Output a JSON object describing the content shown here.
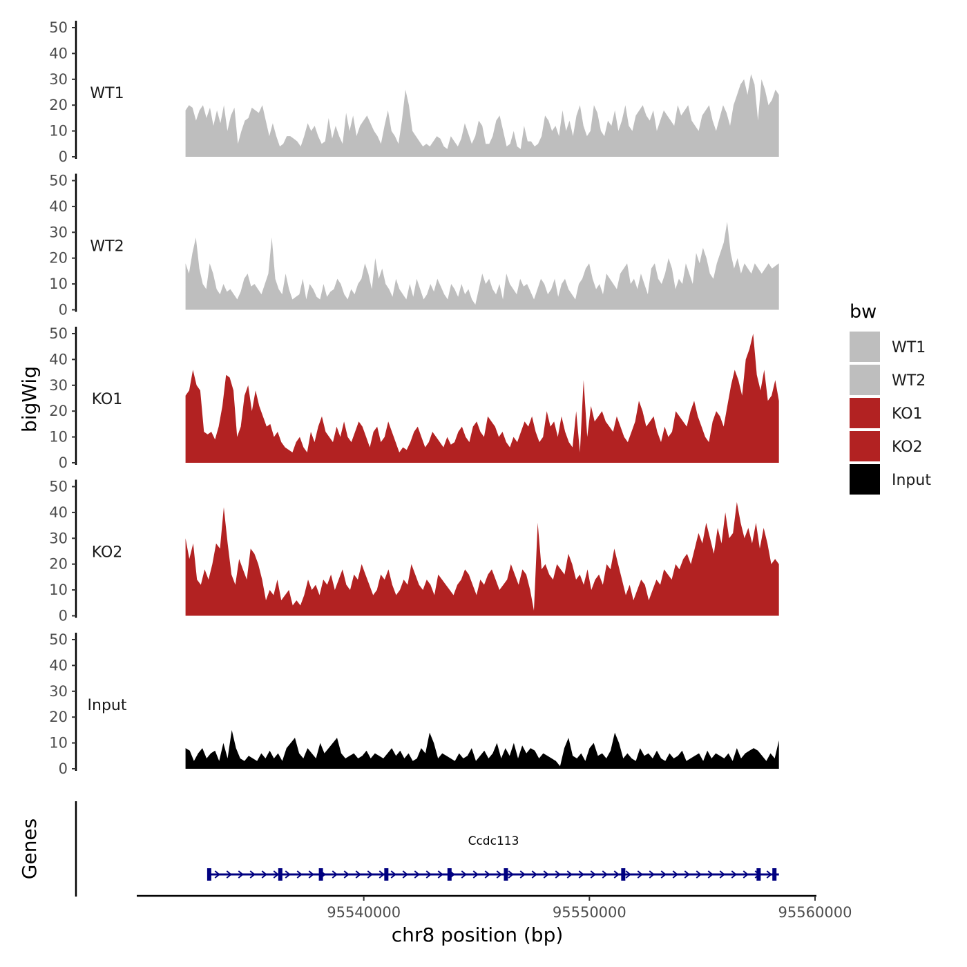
{
  "chart_data": {
    "type": "area",
    "title": "",
    "ylabel": "bigWig",
    "xlabel": "chr8 position (bp)",
    "genes_label": "Genes",
    "xlim": [
      95530000,
      95560000
    ],
    "data_range": [
      95532100,
      95558400
    ],
    "ylim": [
      0,
      50
    ],
    "yticks": [
      0,
      10,
      20,
      30,
      40,
      50
    ],
    "xticks": [
      95540000,
      95550000,
      95560000
    ],
    "xtick_labels": [
      "95540000",
      "95550000",
      "95560000"
    ],
    "legend": {
      "title": "bw",
      "position": "right",
      "entries": [
        {
          "label": "WT1",
          "color": "#BEBEBE"
        },
        {
          "label": "WT2",
          "color": "#BEBEBE"
        },
        {
          "label": "KO1",
          "color": "#B22222"
        },
        {
          "label": "KO2",
          "color": "#B22222"
        },
        {
          "label": "Input",
          "color": "#000000"
        }
      ]
    },
    "series": [
      {
        "name": "WT1",
        "color": "#BEBEBE",
        "values": [
          18,
          20,
          19,
          14,
          18,
          20,
          15,
          19,
          12,
          18,
          13,
          20,
          10,
          16,
          19,
          5,
          10,
          14,
          15,
          19,
          18,
          17,
          20,
          14,
          8,
          13,
          8,
          4,
          5,
          8,
          8,
          7,
          6,
          4,
          8,
          13,
          10,
          12,
          8,
          5,
          6,
          15,
          7,
          12,
          8,
          5,
          17,
          10,
          16,
          8,
          12,
          14,
          16,
          13,
          10,
          8,
          5,
          12,
          18,
          10,
          8,
          5,
          14,
          26,
          20,
          10,
          8,
          6,
          4,
          5,
          4,
          6,
          8,
          7,
          4,
          3,
          8,
          6,
          4,
          7,
          13,
          9,
          5,
          8,
          14,
          12,
          5,
          5,
          8,
          14,
          16,
          10,
          4,
          5,
          10,
          4,
          3,
          12,
          6,
          6,
          4,
          5,
          8,
          16,
          14,
          10,
          12,
          8,
          18,
          10,
          14,
          8,
          16,
          20,
          12,
          8,
          10,
          20,
          17,
          10,
          8,
          14,
          12,
          18,
          10,
          14,
          20,
          12,
          10,
          16,
          18,
          20,
          16,
          14,
          18,
          10,
          14,
          18,
          16,
          14,
          12,
          20,
          16,
          18,
          20,
          14,
          12,
          10,
          16,
          18,
          20,
          14,
          10,
          15,
          20,
          17,
          12,
          20,
          24,
          28,
          30,
          24,
          32,
          28,
          14,
          30,
          26,
          20,
          22,
          26,
          24
        ]
      },
      {
        "name": "WT2",
        "color": "#BEBEBE",
        "values": [
          18,
          14,
          22,
          28,
          16,
          10,
          8,
          18,
          14,
          8,
          6,
          10,
          7,
          8,
          6,
          4,
          7,
          12,
          14,
          9,
          10,
          8,
          6,
          10,
          14,
          28,
          12,
          8,
          6,
          14,
          8,
          4,
          5,
          6,
          12,
          4,
          10,
          8,
          5,
          4,
          10,
          5,
          7,
          8,
          12,
          10,
          6,
          4,
          8,
          6,
          10,
          12,
          18,
          14,
          8,
          20,
          12,
          16,
          10,
          8,
          5,
          12,
          8,
          6,
          4,
          10,
          5,
          12,
          8,
          4,
          6,
          10,
          7,
          12,
          9,
          6,
          4,
          10,
          8,
          5,
          10,
          6,
          8,
          4,
          2,
          8,
          14,
          10,
          12,
          8,
          6,
          10,
          4,
          14,
          10,
          8,
          6,
          12,
          9,
          10,
          7,
          4,
          8,
          12,
          10,
          6,
          8,
          12,
          5,
          10,
          12,
          8,
          6,
          4,
          10,
          12,
          16,
          18,
          12,
          8,
          10,
          6,
          14,
          12,
          10,
          8,
          14,
          16,
          18,
          10,
          12,
          8,
          14,
          10,
          6,
          16,
          18,
          12,
          10,
          14,
          20,
          16,
          8,
          12,
          10,
          18,
          14,
          10,
          22,
          18,
          24,
          20,
          14,
          12,
          18,
          22,
          26,
          34,
          22,
          16,
          20,
          14,
          18,
          16,
          14,
          18,
          16,
          14,
          16,
          18,
          16,
          17,
          18
        ]
      },
      {
        "name": "KO1",
        "color": "#B22222",
        "values": [
          26,
          28,
          36,
          30,
          28,
          12,
          11,
          12,
          9,
          14,
          22,
          34,
          33,
          28,
          10,
          14,
          26,
          30,
          20,
          28,
          22,
          18,
          14,
          15,
          10,
          12,
          8,
          6,
          5,
          4,
          8,
          10,
          6,
          4,
          12,
          8,
          14,
          18,
          12,
          10,
          8,
          14,
          10,
          16,
          10,
          8,
          12,
          16,
          14,
          10,
          6,
          12,
          14,
          8,
          10,
          16,
          12,
          8,
          4,
          6,
          5,
          8,
          12,
          14,
          10,
          6,
          8,
          12,
          10,
          8,
          6,
          10,
          7,
          8,
          12,
          14,
          10,
          8,
          14,
          16,
          12,
          10,
          18,
          16,
          14,
          10,
          12,
          8,
          6,
          10,
          8,
          12,
          16,
          14,
          18,
          12,
          8,
          10,
          20,
          14,
          16,
          10,
          18,
          12,
          8,
          6,
          20,
          4,
          32,
          10,
          22,
          16,
          18,
          20,
          16,
          14,
          12,
          18,
          14,
          10,
          8,
          12,
          16,
          24,
          20,
          14,
          16,
          18,
          12,
          8,
          14,
          10,
          12,
          20,
          18,
          16,
          14,
          20,
          24,
          18,
          14,
          10,
          8,
          16,
          20,
          18,
          14,
          22,
          30,
          36,
          32,
          26,
          40,
          44,
          50,
          34,
          28,
          36,
          24,
          26,
          32,
          24
        ]
      },
      {
        "name": "KO2",
        "color": "#B22222",
        "values": [
          30,
          22,
          28,
          14,
          12,
          18,
          14,
          20,
          28,
          26,
          42,
          28,
          16,
          12,
          22,
          18,
          14,
          26,
          24,
          20,
          14,
          6,
          10,
          8,
          14,
          6,
          8,
          10,
          4,
          6,
          4,
          8,
          14,
          10,
          12,
          8,
          14,
          12,
          16,
          10,
          14,
          18,
          12,
          10,
          16,
          14,
          20,
          16,
          12,
          8,
          10,
          16,
          14,
          18,
          12,
          8,
          10,
          14,
          12,
          20,
          16,
          12,
          10,
          14,
          12,
          8,
          16,
          14,
          12,
          10,
          8,
          12,
          14,
          18,
          16,
          12,
          8,
          14,
          12,
          16,
          18,
          14,
          10,
          12,
          14,
          20,
          16,
          12,
          18,
          16,
          10,
          2,
          36,
          18,
          20,
          16,
          14,
          20,
          18,
          16,
          24,
          20,
          14,
          16,
          12,
          18,
          10,
          14,
          16,
          12,
          20,
          18,
          26,
          20,
          14,
          8,
          12,
          6,
          10,
          14,
          12,
          6,
          10,
          14,
          12,
          18,
          16,
          14,
          20,
          18,
          22,
          24,
          20,
          26,
          32,
          28,
          36,
          30,
          24,
          34,
          28,
          40,
          30,
          32,
          44,
          36,
          30,
          34,
          28,
          36,
          26,
          34,
          28,
          20,
          22,
          20
        ]
      },
      {
        "name": "Input",
        "color": "#000000",
        "values": [
          8,
          7,
          3,
          6,
          8,
          4,
          6,
          7,
          3,
          10,
          4,
          15,
          8,
          4,
          3,
          5,
          4,
          3,
          6,
          4,
          7,
          4,
          6,
          3,
          8,
          10,
          12,
          6,
          4,
          8,
          6,
          4,
          10,
          6,
          8,
          10,
          12,
          6,
          4,
          5,
          6,
          4,
          5,
          7,
          4,
          6,
          5,
          4,
          6,
          8,
          5,
          7,
          4,
          6,
          3,
          4,
          8,
          6,
          14,
          10,
          4,
          6,
          5,
          4,
          3,
          6,
          4,
          5,
          8,
          3,
          5,
          7,
          4,
          6,
          10,
          4,
          8,
          5,
          10,
          4,
          9,
          6,
          8,
          7,
          4,
          6,
          5,
          4,
          3,
          1,
          8,
          12,
          5,
          4,
          6,
          3,
          8,
          10,
          5,
          6,
          4,
          7,
          14,
          10,
          4,
          6,
          4,
          3,
          8,
          5,
          6,
          4,
          7,
          4,
          3,
          6,
          4,
          5,
          7,
          3,
          4,
          5,
          6,
          3,
          7,
          4,
          6,
          5,
          4,
          6,
          3,
          8,
          4,
          6,
          7,
          8,
          7,
          5,
          3,
          6,
          4,
          11
        ]
      }
    ],
    "gene": {
      "name": "Ccdc113",
      "color": "#000080",
      "start": 95533100,
      "end": 95558400,
      "strand": "+",
      "exons": [
        95533150,
        95536300,
        95538100,
        95541000,
        95543800,
        95546300,
        95551500,
        95557500,
        95558200
      ]
    }
  }
}
